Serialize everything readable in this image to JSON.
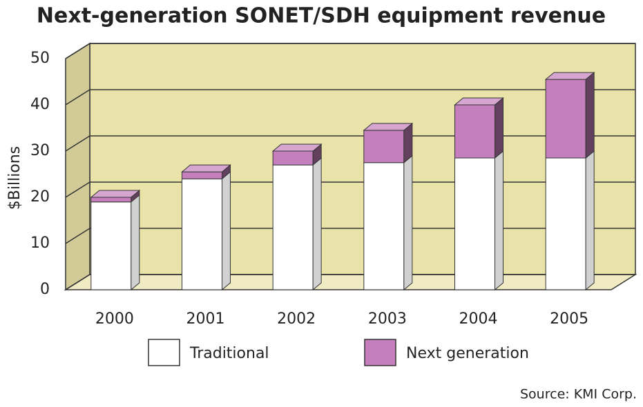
{
  "chart_data": {
    "type": "bar",
    "stacked": true,
    "title": "Next-generation SONET/SDH equipment revenue",
    "y_label": "$Billions",
    "source": "Source: KMI Corp.",
    "categories": [
      "2000",
      "2001",
      "2002",
      "2003",
      "2004",
      "2005"
    ],
    "series": [
      {
        "name": "Traditional",
        "color": "#ffffff",
        "values": [
          19,
          24,
          27,
          27.5,
          28.5,
          28.5
        ]
      },
      {
        "name": "Next generation",
        "color": "#c47fbc",
        "values": [
          1,
          1.5,
          3,
          7,
          11.5,
          17
        ]
      }
    ],
    "ylim": [
      0,
      50
    ],
    "yticks": [
      0,
      10,
      20,
      30,
      40,
      50
    ],
    "grid": true,
    "wall_color": "#e9e2a9"
  }
}
